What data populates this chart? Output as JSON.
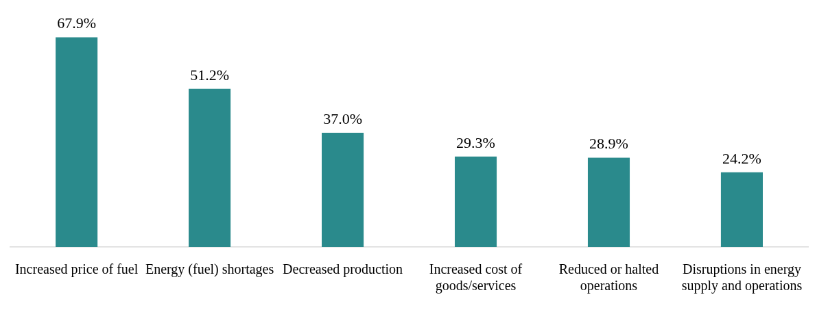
{
  "chart_data": {
    "type": "bar",
    "categories": [
      "Increased price of fuel",
      "Energy (fuel) shortages",
      "Decreased production",
      "Increased cost of goods/services",
      "Reduced or halted operations",
      "Disruptions in energy supply and operations"
    ],
    "values": [
      67.9,
      51.2,
      37.0,
      29.3,
      28.9,
      24.2
    ],
    "value_labels": [
      "67.9%",
      "51.2%",
      "37.0%",
      "29.3%",
      "28.9%",
      "24.2%"
    ],
    "color": "#2a8a8c",
    "grid": false,
    "legend": false,
    "tick_labels": "x"
  }
}
